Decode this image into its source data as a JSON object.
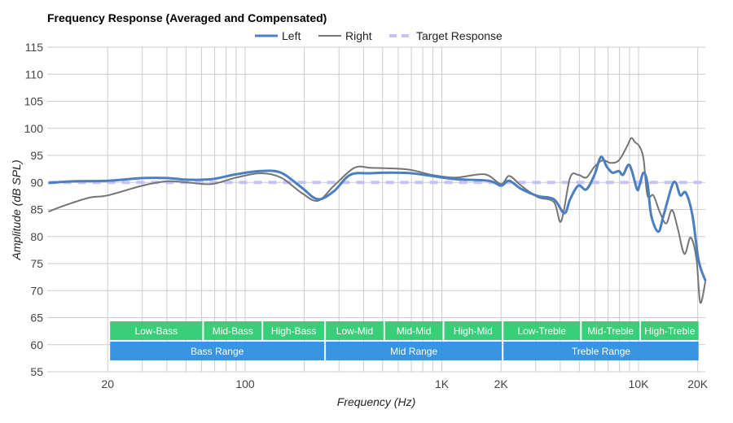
{
  "chart_data": {
    "type": "line",
    "title": "Frequency Response (Averaged and Compensated)",
    "xlabel": "Frequency (Hz)",
    "ylabel": "Amplitude (dB SPL)",
    "xscale": "log",
    "xlim": [
      10,
      22000
    ],
    "ylim": [
      55,
      115
    ],
    "grid": true,
    "legend_position": "top-center",
    "y_ticks": [
      55,
      60,
      65,
      70,
      75,
      80,
      85,
      90,
      95,
      100,
      105,
      110,
      115
    ],
    "x_ticks": [
      {
        "value": 20,
        "label": "20"
      },
      {
        "value": 100,
        "label": "100"
      },
      {
        "value": 1000,
        "label": "1K"
      },
      {
        "value": 2000,
        "label": "2K"
      },
      {
        "value": 10000,
        "label": "10K"
      },
      {
        "value": 20000,
        "label": "20K"
      }
    ],
    "x_gridlines": [
      20,
      30,
      40,
      50,
      60,
      70,
      80,
      90,
      100,
      200,
      300,
      400,
      500,
      600,
      700,
      800,
      900,
      1000,
      2000,
      3000,
      4000,
      5000,
      6000,
      7000,
      8000,
      9000,
      10000,
      20000
    ],
    "series": [
      {
        "name": "Left",
        "color": "#4a7fc1",
        "style": "solid",
        "points": [
          [
            10,
            89.9
          ],
          [
            13.4,
            90.2
          ],
          [
            20,
            90.3
          ],
          [
            30,
            90.8
          ],
          [
            40,
            90.8
          ],
          [
            50.8,
            90.5
          ],
          [
            67.6,
            90.6
          ],
          [
            90,
            91.5
          ],
          [
            120,
            92.1
          ],
          [
            152,
            91.8
          ],
          [
            193,
            89.1
          ],
          [
            234,
            86.9
          ],
          [
            283,
            88.4
          ],
          [
            342,
            91.4
          ],
          [
            434,
            91.7
          ],
          [
            551,
            91.8
          ],
          [
            699,
            91.7
          ],
          [
            887,
            91.2
          ],
          [
            1180,
            90.6
          ],
          [
            1730,
            90.3
          ],
          [
            2000,
            89.4
          ],
          [
            2200,
            90.3
          ],
          [
            2530,
            88.8
          ],
          [
            3070,
            87.5
          ],
          [
            3710,
            86.9
          ],
          [
            4200,
            84.3
          ],
          [
            4490,
            86.9
          ],
          [
            4940,
            89.4
          ],
          [
            5430,
            88.7
          ],
          [
            5970,
            91.4
          ],
          [
            6440,
            94.7
          ],
          [
            6900,
            92.9
          ],
          [
            7370,
            91.8
          ],
          [
            7950,
            92.1
          ],
          [
            8340,
            91.4
          ],
          [
            9000,
            93.2
          ],
          [
            9810,
            88.8
          ],
          [
            10100,
            89.4
          ],
          [
            10600,
            91.8
          ],
          [
            11100,
            89.9
          ],
          [
            11600,
            83.9
          ],
          [
            12600,
            80.9
          ],
          [
            13400,
            83.9
          ],
          [
            14800,
            89.4
          ],
          [
            15500,
            89.9
          ],
          [
            16300,
            87.6
          ],
          [
            17400,
            88.1
          ],
          [
            18800,
            83.9
          ],
          [
            20200,
            75.6
          ],
          [
            21900,
            71.8
          ]
        ]
      },
      {
        "name": "Right",
        "color": "#757575",
        "style": "solid",
        "points": [
          [
            10,
            84.6
          ],
          [
            12.2,
            85.8
          ],
          [
            16.2,
            87.2
          ],
          [
            20,
            87.6
          ],
          [
            30,
            89.4
          ],
          [
            40,
            90.2
          ],
          [
            50.8,
            90.0
          ],
          [
            67.6,
            89.7
          ],
          [
            90,
            90.9
          ],
          [
            120,
            91.7
          ],
          [
            152,
            90.9
          ],
          [
            193,
            88.1
          ],
          [
            234,
            86.6
          ],
          [
            283,
            89.4
          ],
          [
            359,
            92.7
          ],
          [
            434,
            92.7
          ],
          [
            551,
            92.6
          ],
          [
            699,
            92.3
          ],
          [
            887,
            91.4
          ],
          [
            1180,
            90.9
          ],
          [
            1650,
            91.5
          ],
          [
            2000,
            89.7
          ],
          [
            2200,
            91.2
          ],
          [
            2530,
            89.4
          ],
          [
            3070,
            87.3
          ],
          [
            3710,
            86.4
          ],
          [
            4040,
            82.8
          ],
          [
            4490,
            90.9
          ],
          [
            4940,
            91.4
          ],
          [
            5430,
            90.9
          ],
          [
            5970,
            92.9
          ],
          [
            6570,
            94.1
          ],
          [
            7230,
            93.6
          ],
          [
            7950,
            94.1
          ],
          [
            8750,
            96.7
          ],
          [
            9180,
            98.2
          ],
          [
            9620,
            97.4
          ],
          [
            10100,
            96.7
          ],
          [
            10600,
            94.4
          ],
          [
            11100,
            87.6
          ],
          [
            11900,
            87.6
          ],
          [
            12800,
            84.6
          ],
          [
            13800,
            82.4
          ],
          [
            14800,
            84.9
          ],
          [
            15800,
            81.6
          ],
          [
            17100,
            76.8
          ],
          [
            18400,
            79.8
          ],
          [
            19700,
            75.9
          ],
          [
            20600,
            67.8
          ],
          [
            21900,
            71.8
          ]
        ]
      },
      {
        "name": "Target Response",
        "color": "#c3c3f7",
        "style": "dashed",
        "points": [
          [
            10,
            90
          ],
          [
            22000,
            90
          ]
        ]
      }
    ],
    "ranges": [
      {
        "label": "Low-Bass",
        "from": 20,
        "to": 60,
        "row": 1
      },
      {
        "label": "Mid-Bass",
        "from": 60,
        "to": 120,
        "row": 1
      },
      {
        "label": "High-Bass",
        "from": 120,
        "to": 250,
        "row": 1
      },
      {
        "label": "Low-Mid",
        "from": 250,
        "to": 500,
        "row": 1
      },
      {
        "label": "Mid-Mid",
        "from": 500,
        "to": 1000,
        "row": 1
      },
      {
        "label": "High-Mid",
        "from": 1000,
        "to": 2000,
        "row": 1
      },
      {
        "label": "Low-Treble",
        "from": 2000,
        "to": 5000,
        "row": 1
      },
      {
        "label": "Mid-Treble",
        "from": 5000,
        "to": 10000,
        "row": 1
      },
      {
        "label": "High-Treble",
        "from": 10000,
        "to": 20000,
        "row": 1
      },
      {
        "label": "Bass Range",
        "from": 20,
        "to": 250,
        "row": 2
      },
      {
        "label": "Mid Range",
        "from": 250,
        "to": 2000,
        "row": 2
      },
      {
        "label": "Treble Range",
        "from": 2000,
        "to": 20000,
        "row": 2
      }
    ],
    "range_colors": {
      "sub": "#2ecc71",
      "main": "#2d8fe0"
    }
  }
}
